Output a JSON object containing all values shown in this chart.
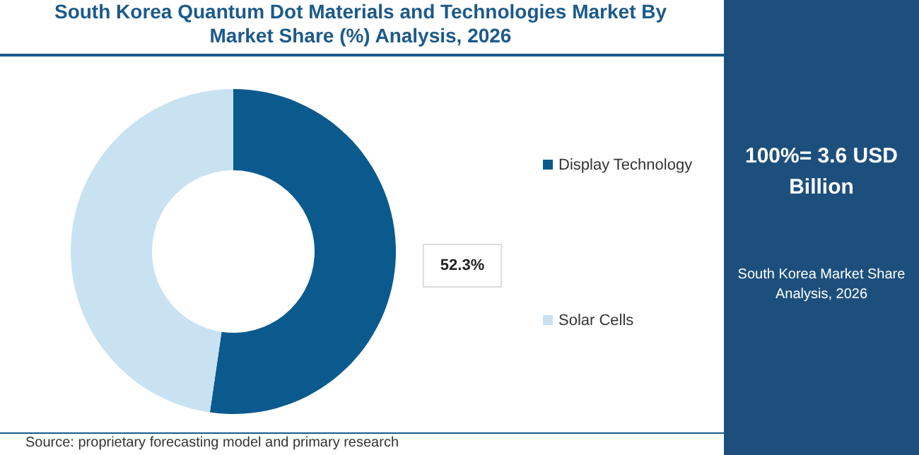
{
  "chart_data": {
    "type": "donut",
    "title": "South Korea Quantum Dot Materials and Technologies Market By Market Share (%) Analysis, 2026",
    "categories": [
      "Display Technology",
      "Solar Cells"
    ],
    "values": [
      52.3,
      47.7
    ],
    "colors": [
      "#0b5a8e",
      "#c8e2f2"
    ],
    "value_labels": [
      "52.3%",
      null
    ],
    "legend": "right",
    "annotations": [
      "100%= 3.6 USD Billion",
      "South Korea Market Share Analysis, 2026",
      "Source: proprietary forecasting model and primary research"
    ]
  }
}
